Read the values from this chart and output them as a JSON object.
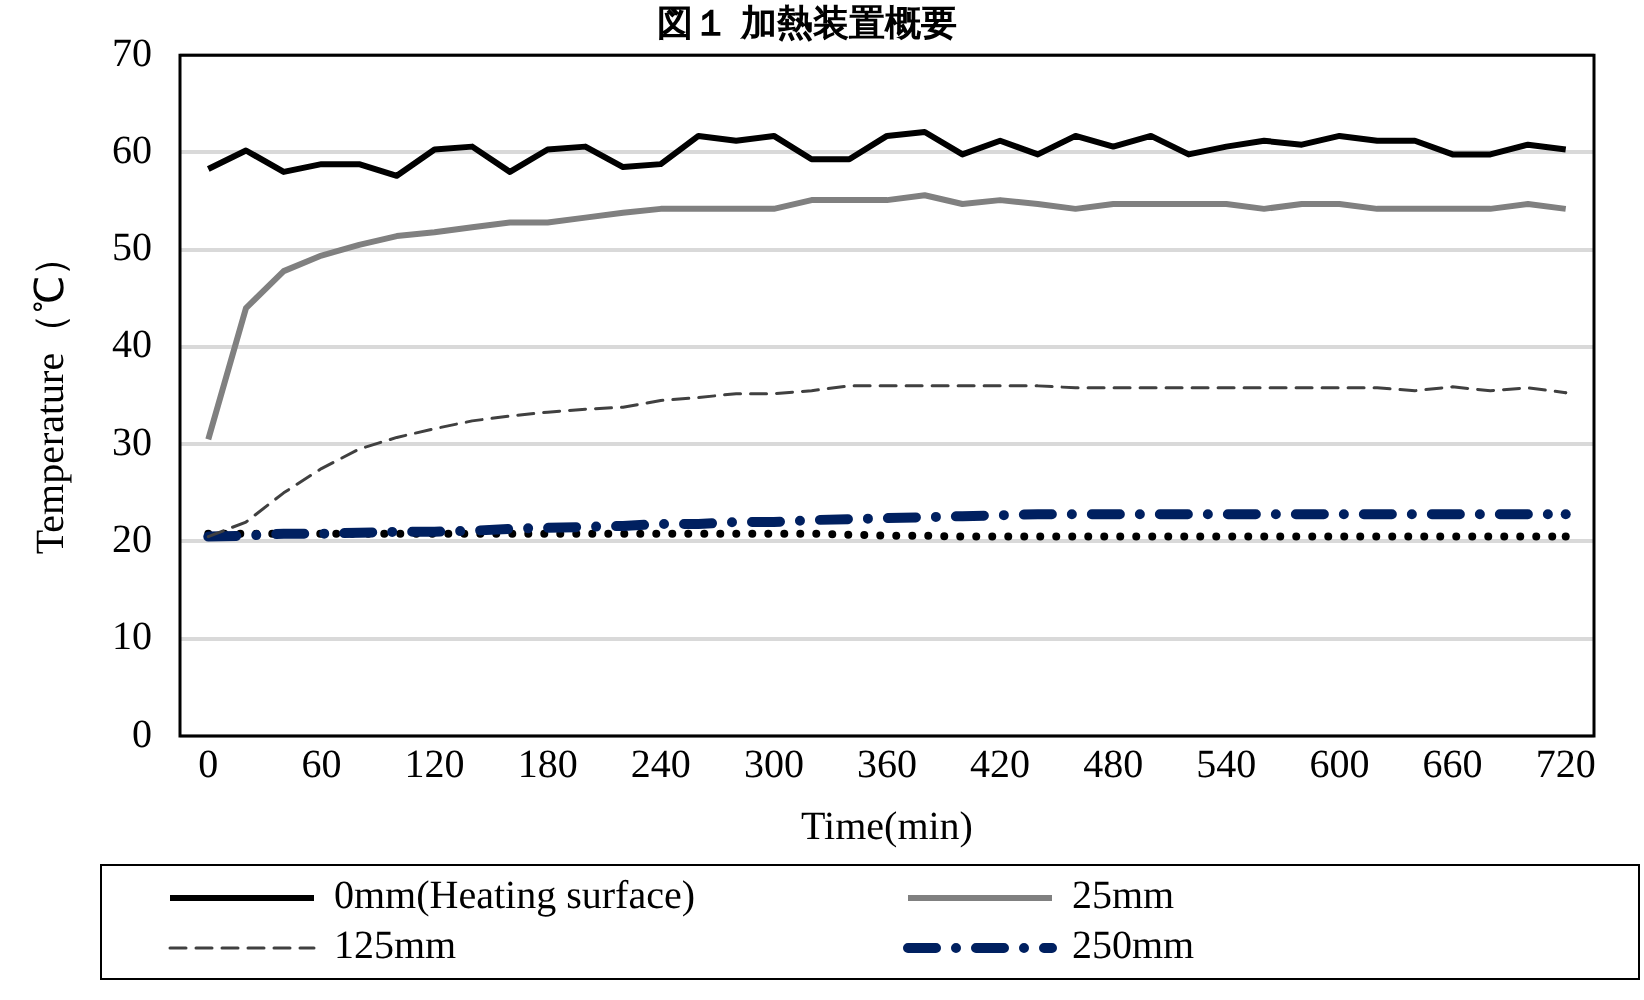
{
  "chart_data": {
    "type": "line",
    "title": "図１ 加熱装置概要",
    "xlabel": "Time(min)",
    "ylabel": "Temperature（℃）",
    "x": [
      0,
      20,
      40,
      60,
      80,
      100,
      120,
      140,
      160,
      180,
      200,
      220,
      240,
      260,
      280,
      300,
      320,
      340,
      360,
      380,
      400,
      420,
      440,
      460,
      480,
      500,
      520,
      540,
      560,
      580,
      600,
      620,
      640,
      660,
      680,
      700,
      720
    ],
    "xlim": [
      -15,
      735
    ],
    "xticks": [
      0,
      60,
      120,
      180,
      240,
      300,
      360,
      420,
      480,
      540,
      600,
      660,
      720
    ],
    "ylim": [
      0,
      70
    ],
    "yticks": [
      0,
      10,
      20,
      30,
      40,
      50,
      60,
      70
    ],
    "grid": "y",
    "legend": "bottom",
    "marker": "none",
    "series": [
      {
        "name": "0mm(Heating surface)",
        "color": "#000000",
        "line_style": "solid",
        "values": [
          58.3,
          60.2,
          58,
          58.8,
          58.8,
          57.6,
          60.3,
          60.6,
          58,
          60.3,
          60.6,
          58.5,
          58.8,
          61.7,
          61.2,
          61.7,
          59.3,
          59.3,
          61.7,
          62.1,
          59.8,
          61.2,
          59.8,
          61.7,
          60.6,
          61.7,
          59.8,
          60.6,
          61.2,
          60.8,
          61.7,
          61.2,
          61.2,
          59.8,
          59.8,
          60.8,
          60.3
        ]
      },
      {
        "name": "25mm",
        "color": "#808080",
        "line_style": "solid",
        "values": [
          30.5,
          44,
          47.8,
          49.4,
          50.5,
          51.4,
          51.8,
          52.3,
          52.8,
          52.8,
          53.3,
          53.8,
          54.2,
          54.2,
          54.2,
          54.2,
          55.1,
          55.1,
          55.1,
          55.6,
          54.7,
          55.1,
          54.7,
          54.2,
          54.7,
          54.7,
          54.7,
          54.7,
          54.2,
          54.7,
          54.7,
          54.2,
          54.2,
          54.2,
          54.2,
          54.7,
          54.2
        ]
      },
      {
        "name": "125mm",
        "color": "#404040",
        "line_style": "dashed",
        "values": [
          20.5,
          22,
          25,
          27.5,
          29.5,
          30.7,
          31.6,
          32.4,
          32.9,
          33.3,
          33.6,
          33.8,
          34.5,
          34.8,
          35.2,
          35.2,
          35.5,
          36,
          36,
          36,
          36,
          36,
          36,
          35.8,
          35.8,
          35.8,
          35.8,
          35.8,
          35.8,
          35.8,
          35.8,
          35.8,
          35.5,
          35.9,
          35.5,
          35.8,
          35.3
        ]
      },
      {
        "name": "250mm",
        "color": "#002060",
        "line_style": "dashdot",
        "values": [
          20.5,
          20.6,
          20.8,
          20.8,
          20.9,
          21,
          21,
          21.1,
          21.3,
          21.4,
          21.5,
          21.6,
          21.8,
          21.8,
          22,
          22,
          22.2,
          22.3,
          22.4,
          22.5,
          22.6,
          22.7,
          22.8,
          22.8,
          22.8,
          22.8,
          22.8,
          22.8,
          22.8,
          22.8,
          22.8,
          22.8,
          22.8,
          22.8,
          22.8,
          22.8,
          22.8
        ]
      },
      {
        "color": "#000000",
        "line_style": "dotted",
        "values": [
          20.8,
          20.8,
          20.8,
          20.8,
          20.8,
          20.8,
          20.8,
          20.8,
          20.8,
          20.8,
          20.8,
          20.8,
          20.8,
          20.8,
          20.8,
          20.8,
          20.8,
          20.7,
          20.6,
          20.6,
          20.5,
          20.5,
          20.5,
          20.5,
          20.5,
          20.5,
          20.5,
          20.5,
          20.5,
          20.5,
          20.5,
          20.5,
          20.5,
          20.5,
          20.5,
          20.5,
          20.5
        ]
      }
    ]
  }
}
